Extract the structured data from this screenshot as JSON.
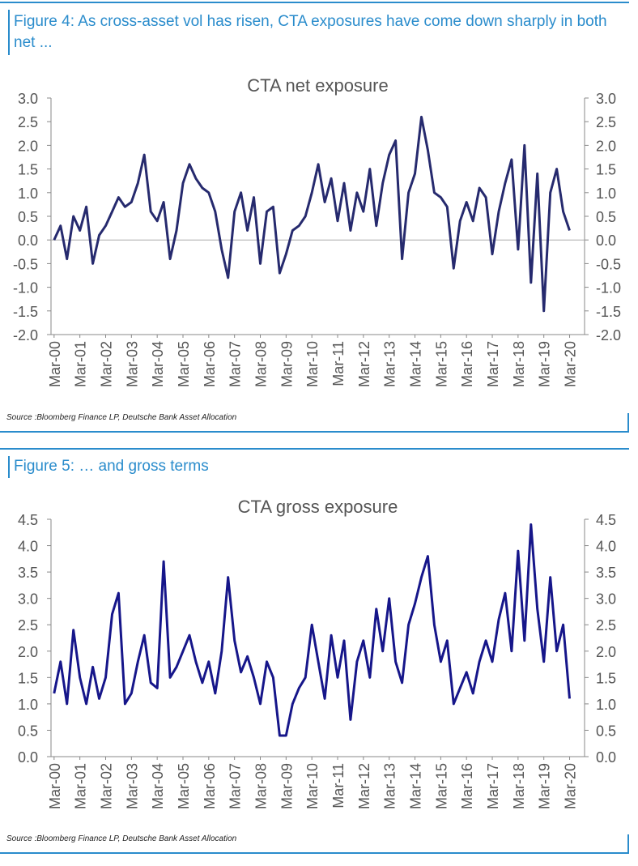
{
  "captions": [
    "Figure 4: As cross-asset vol has risen, CTA exposures have come down sharply in both net ...",
    "Figure 5: … and gross terms"
  ],
  "sources": [
    "Source :Bloomberg Finance LP, Deutsche Bank Asset Allocation",
    "Source :Bloomberg Finance LP, Deutsche Bank Asset Allocation"
  ],
  "chart_data": [
    {
      "type": "line",
      "title": "CTA net exposure",
      "color": "#262a6e",
      "zero_line": true,
      "x": [
        2000.17,
        2000.42,
        2000.67,
        2000.92,
        2001.17,
        2001.42,
        2001.67,
        2001.92,
        2002.17,
        2002.42,
        2002.67,
        2002.92,
        2003.17,
        2003.42,
        2003.67,
        2003.92,
        2004.17,
        2004.42,
        2004.67,
        2004.92,
        2005.17,
        2005.42,
        2005.67,
        2005.92,
        2006.17,
        2006.42,
        2006.67,
        2006.92,
        2007.17,
        2007.42,
        2007.67,
        2007.92,
        2008.17,
        2008.42,
        2008.67,
        2008.92,
        2009.17,
        2009.42,
        2009.67,
        2009.92,
        2010.17,
        2010.42,
        2010.67,
        2010.92,
        2011.17,
        2011.42,
        2011.67,
        2011.92,
        2012.17,
        2012.42,
        2012.67,
        2012.92,
        2013.17,
        2013.42,
        2013.67,
        2013.92,
        2014.17,
        2014.42,
        2014.67,
        2014.92,
        2015.17,
        2015.42,
        2015.67,
        2015.92,
        2016.17,
        2016.42,
        2016.67,
        2016.92,
        2017.17,
        2017.42,
        2017.67,
        2017.92,
        2018.17,
        2018.42,
        2018.67,
        2018.92,
        2019.17,
        2019.42,
        2019.67,
        2019.92,
        2020.17
      ],
      "values": [
        0.0,
        0.3,
        -0.4,
        0.5,
        0.2,
        0.7,
        -0.5,
        0.1,
        0.3,
        0.6,
        0.9,
        0.7,
        0.8,
        1.2,
        1.8,
        0.6,
        0.4,
        0.8,
        -0.4,
        0.2,
        1.2,
        1.6,
        1.3,
        1.1,
        1.0,
        0.6,
        -0.2,
        -0.8,
        0.6,
        1.0,
        0.2,
        0.9,
        -0.5,
        0.6,
        0.7,
        -0.7,
        -0.3,
        0.2,
        0.3,
        0.5,
        1.0,
        1.6,
        0.8,
        1.3,
        0.4,
        1.2,
        0.2,
        1.0,
        0.6,
        1.5,
        0.3,
        1.2,
        1.8,
        2.1,
        -0.4,
        1.0,
        1.4,
        2.6,
        1.9,
        1.0,
        0.9,
        0.7,
        -0.6,
        0.4,
        0.8,
        0.4,
        1.1,
        0.9,
        -0.3,
        0.6,
        1.2,
        1.7,
        -0.2,
        2.0,
        -0.9,
        1.4,
        -1.5,
        1.0,
        1.5,
        0.6,
        0.2
      ],
      "xlim": [
        2000.05,
        2020.75
      ],
      "xticks": [
        {
          "value": 2000.17,
          "label": "Mar-00"
        },
        {
          "value": 2001.17,
          "label": "Mar-01"
        },
        {
          "value": 2002.17,
          "label": "Mar-02"
        },
        {
          "value": 2003.17,
          "label": "Mar-03"
        },
        {
          "value": 2004.17,
          "label": "Mar-04"
        },
        {
          "value": 2005.17,
          "label": "Mar-05"
        },
        {
          "value": 2006.17,
          "label": "Mar-06"
        },
        {
          "value": 2007.17,
          "label": "Mar-07"
        },
        {
          "value": 2008.17,
          "label": "Mar-08"
        },
        {
          "value": 2009.17,
          "label": "Mar-09"
        },
        {
          "value": 2010.17,
          "label": "Mar-10"
        },
        {
          "value": 2011.17,
          "label": "Mar-11"
        },
        {
          "value": 2012.17,
          "label": "Mar-12"
        },
        {
          "value": 2013.17,
          "label": "Mar-13"
        },
        {
          "value": 2014.17,
          "label": "Mar-14"
        },
        {
          "value": 2015.17,
          "label": "Mar-15"
        },
        {
          "value": 2016.17,
          "label": "Mar-16"
        },
        {
          "value": 2017.17,
          "label": "Mar-17"
        },
        {
          "value": 2018.17,
          "label": "Mar-18"
        },
        {
          "value": 2019.17,
          "label": "Mar-19"
        },
        {
          "value": 2020.17,
          "label": "Mar-20"
        }
      ],
      "ylim": [
        -2,
        3
      ],
      "yticks": [
        {
          "value": 3,
          "label": "3.0"
        },
        2.5,
        {
          "value": 2,
          "label": "2.0"
        },
        1.5,
        {
          "value": 1,
          "label": "1.0"
        },
        0.5,
        {
          "value": 0,
          "label": "0.0"
        },
        -0.5,
        {
          "value": -1,
          "label": "-1.0"
        },
        -1.5,
        {
          "value": -2,
          "label": "-2.0"
        }
      ],
      "y2lim": [
        -2,
        3
      ],
      "y2ticks": [
        {
          "value": 3,
          "label": "3.0"
        },
        2.5,
        {
          "value": 2,
          "label": "2.0"
        },
        1.5,
        {
          "value": 1,
          "label": "1.0"
        },
        0.5,
        {
          "value": 0,
          "label": "0.0"
        },
        -0.5,
        {
          "value": -1,
          "label": "-1.0"
        },
        -1.5,
        {
          "value": -2,
          "label": "-2.0"
        }
      ]
    },
    {
      "type": "line",
      "title": "CTA gross exposure",
      "color": "#16168a",
      "zero_line": false,
      "x": [
        2000.17,
        2000.42,
        2000.67,
        2000.92,
        2001.17,
        2001.42,
        2001.67,
        2001.92,
        2002.17,
        2002.42,
        2002.67,
        2002.92,
        2003.17,
        2003.42,
        2003.67,
        2003.92,
        2004.17,
        2004.42,
        2004.67,
        2004.92,
        2005.17,
        2005.42,
        2005.67,
        2005.92,
        2006.17,
        2006.42,
        2006.67,
        2006.92,
        2007.17,
        2007.42,
        2007.67,
        2007.92,
        2008.17,
        2008.42,
        2008.67,
        2008.92,
        2009.17,
        2009.42,
        2009.67,
        2009.92,
        2010.17,
        2010.42,
        2010.67,
        2010.92,
        2011.17,
        2011.42,
        2011.67,
        2011.92,
        2012.17,
        2012.42,
        2012.67,
        2012.92,
        2013.17,
        2013.42,
        2013.67,
        2013.92,
        2014.17,
        2014.42,
        2014.67,
        2014.92,
        2015.17,
        2015.42,
        2015.67,
        2015.92,
        2016.17,
        2016.42,
        2016.67,
        2016.92,
        2017.17,
        2017.42,
        2017.67,
        2017.92,
        2018.17,
        2018.42,
        2018.67,
        2018.92,
        2019.17,
        2019.42,
        2019.67,
        2019.92,
        2020.17
      ],
      "values": [
        1.2,
        1.8,
        1.0,
        2.4,
        1.5,
        1.0,
        1.7,
        1.1,
        1.5,
        2.7,
        3.1,
        1.0,
        1.2,
        1.8,
        2.3,
        1.4,
        1.3,
        3.7,
        1.5,
        1.7,
        2.0,
        2.3,
        1.8,
        1.4,
        1.8,
        1.2,
        2.0,
        3.4,
        2.2,
        1.6,
        1.9,
        1.5,
        1.0,
        1.8,
        1.5,
        0.4,
        0.4,
        1.0,
        1.3,
        1.5,
        2.5,
        1.8,
        1.1,
        2.3,
        1.5,
        2.2,
        0.7,
        1.8,
        2.2,
        1.5,
        2.8,
        2.0,
        3.0,
        1.8,
        1.4,
        2.5,
        2.9,
        3.4,
        3.8,
        2.5,
        1.8,
        2.2,
        1.0,
        1.3,
        1.6,
        1.2,
        1.8,
        2.2,
        1.8,
        2.6,
        3.1,
        2.0,
        3.9,
        2.2,
        4.4,
        2.8,
        1.8,
        3.4,
        2.0,
        2.5,
        1.1
      ],
      "xlim": [
        2000.05,
        2020.75
      ],
      "xticks": [
        {
          "value": 2000.17,
          "label": "Mar-00"
        },
        {
          "value": 2001.17,
          "label": "Mar-01"
        },
        {
          "value": 2002.17,
          "label": "Mar-02"
        },
        {
          "value": 2003.17,
          "label": "Mar-03"
        },
        {
          "value": 2004.17,
          "label": "Mar-04"
        },
        {
          "value": 2005.17,
          "label": "Mar-05"
        },
        {
          "value": 2006.17,
          "label": "Mar-06"
        },
        {
          "value": 2007.17,
          "label": "Mar-07"
        },
        {
          "value": 2008.17,
          "label": "Mar-08"
        },
        {
          "value": 2009.17,
          "label": "Mar-09"
        },
        {
          "value": 2010.17,
          "label": "Mar-10"
        },
        {
          "value": 2011.17,
          "label": "Mar-11"
        },
        {
          "value": 2012.17,
          "label": "Mar-12"
        },
        {
          "value": 2013.17,
          "label": "Mar-13"
        },
        {
          "value": 2014.17,
          "label": "Mar-14"
        },
        {
          "value": 2015.17,
          "label": "Mar-15"
        },
        {
          "value": 2016.17,
          "label": "Mar-16"
        },
        {
          "value": 2017.17,
          "label": "Mar-17"
        },
        {
          "value": 2018.17,
          "label": "Mar-18"
        },
        {
          "value": 2019.17,
          "label": "Mar-19"
        },
        {
          "value": 2020.17,
          "label": "Mar-20"
        }
      ],
      "ylim": [
        0,
        4.5
      ],
      "yticks": [
        4.5,
        {
          "value": 4,
          "label": "4.0"
        },
        3.5,
        {
          "value": 3,
          "label": "3.0"
        },
        2.5,
        {
          "value": 2,
          "label": "2.0"
        },
        1.5,
        {
          "value": 1,
          "label": "1.0"
        },
        0.5,
        {
          "value": 0,
          "label": "0.0"
        }
      ],
      "y2lim": [
        0,
        4.5
      ],
      "y2ticks": [
        4.5,
        {
          "value": 4,
          "label": "4.0"
        },
        3.5,
        {
          "value": 3,
          "label": "3.0"
        },
        2.5,
        {
          "value": 2,
          "label": "2.0"
        },
        1.5,
        {
          "value": 1,
          "label": "1.0"
        },
        0.5,
        {
          "value": 0,
          "label": "0.0"
        }
      ]
    }
  ]
}
